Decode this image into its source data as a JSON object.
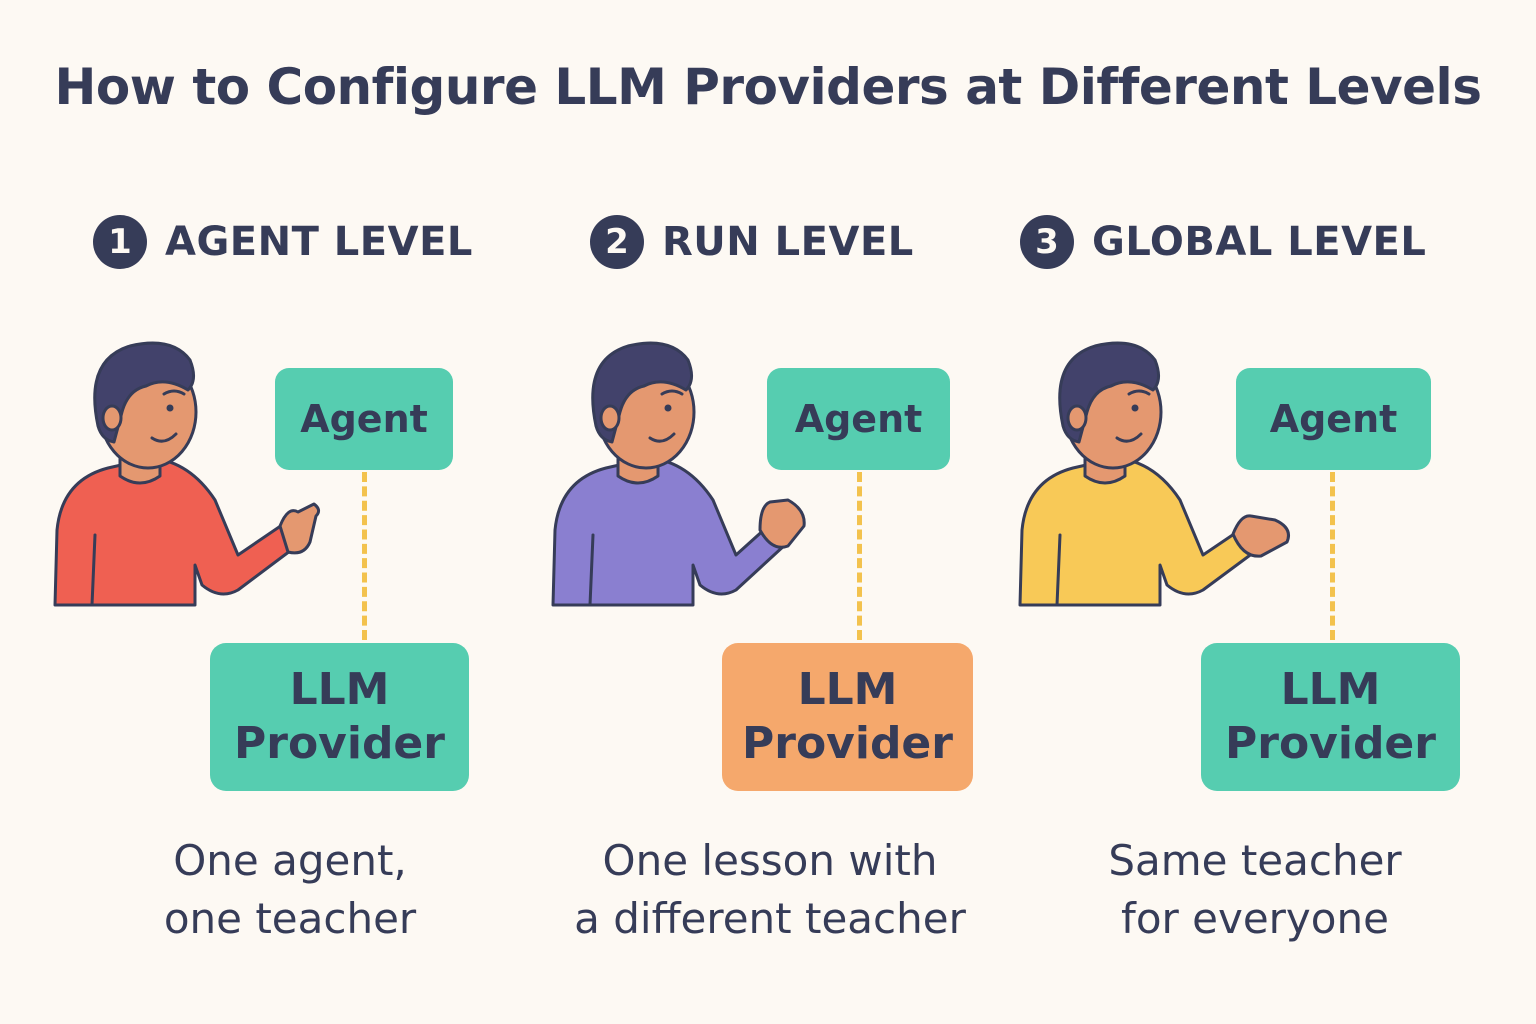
{
  "title": "How to Configure LLM Providers at Different Levels",
  "colors": {
    "background": "#fdf9f3",
    "text": "#363c58",
    "teal_box": "#56cdb0",
    "orange_box": "#f5a86c",
    "connector": "#f3c24d",
    "shirt_red": "#ef6052",
    "shirt_purple": "#8a7fd0",
    "shirt_yellow": "#f8c957"
  },
  "levels": [
    {
      "number": "1",
      "label": "AGENT LEVEL",
      "agent_label": "Agent",
      "provider_line1": "LLM",
      "provider_line2": "Provider",
      "provider_color": "teal",
      "shirt_color": "red",
      "caption_line1": "One agent,",
      "caption_line2": "one teacher"
    },
    {
      "number": "2",
      "label": "RUN LEVEL",
      "agent_label": "Agent",
      "provider_line1": "LLM",
      "provider_line2": "Provider",
      "provider_color": "orange",
      "shirt_color": "purple",
      "caption_line1": "One lesson with",
      "caption_line2": "a different teacher"
    },
    {
      "number": "3",
      "label": "GLOBAL LEVEL",
      "agent_label": "Agent",
      "provider_line1": "LLM",
      "provider_line2": "Provider",
      "provider_color": "teal",
      "shirt_color": "yellow",
      "caption_line1": "Same teacher",
      "caption_line2": "for everyone"
    }
  ]
}
